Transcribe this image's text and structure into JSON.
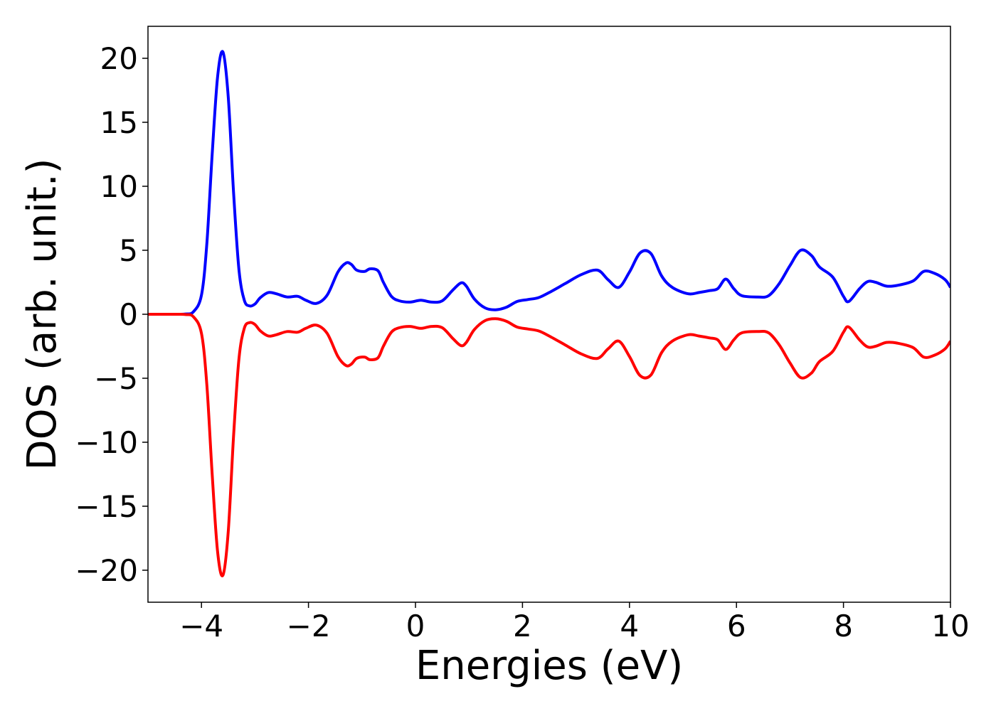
{
  "chart_data": {
    "type": "line",
    "title": "",
    "xlabel": "Energies (eV)",
    "ylabel": "DOS (arb. unit.)",
    "xlim": [
      -5,
      10
    ],
    "ylim": [
      -22.5,
      22.5
    ],
    "xticks": [
      -4,
      -2,
      0,
      2,
      4,
      6,
      8,
      10
    ],
    "yticks": [
      -20,
      -15,
      -10,
      -5,
      0,
      5,
      10,
      15,
      20
    ],
    "xtick_labels": [
      "−4",
      "−2",
      "0",
      "2",
      "4",
      "6",
      "8",
      "10"
    ],
    "ytick_labels": [
      "−20",
      "−15",
      "−10",
      "−5",
      "0",
      "5",
      "10",
      "15",
      "20"
    ],
    "grid": false,
    "legend": "none",
    "series": [
      {
        "color": "#0000ff",
        "x": [
          -5,
          -4.6,
          -4.3,
          -4.15,
          -4.0,
          -3.9,
          -3.8,
          -3.7,
          -3.6,
          -3.5,
          -3.4,
          -3.3,
          -3.2,
          -3.1,
          -3.0,
          -2.9,
          -2.75,
          -2.6,
          -2.4,
          -2.2,
          -2.05,
          -1.85,
          -1.65,
          -1.45,
          -1.3,
          -1.2,
          -1.1,
          -0.95,
          -0.85,
          -0.7,
          -0.6,
          -0.45,
          -0.3,
          -0.1,
          0.1,
          0.3,
          0.5,
          0.7,
          0.85,
          0.95,
          1.1,
          1.3,
          1.5,
          1.7,
          1.9,
          2.1,
          2.3,
          2.5,
          2.8,
          3.1,
          3.4,
          3.6,
          3.8,
          4.0,
          4.2,
          4.4,
          4.6,
          4.8,
          5.1,
          5.3,
          5.5,
          5.65,
          5.8,
          5.95,
          6.1,
          6.4,
          6.6,
          6.8,
          7.0,
          7.2,
          7.4,
          7.55,
          7.8,
          8.0,
          8.1,
          8.3,
          8.45,
          8.6,
          8.8,
          9.0,
          9.3,
          9.5,
          9.7,
          9.9,
          10.0
        ],
        "values": [
          0,
          0,
          0.02,
          0.2,
          1.5,
          5.5,
          12.5,
          18.5,
          20.5,
          17.0,
          9.5,
          3.5,
          1.1,
          0.65,
          0.8,
          1.3,
          1.7,
          1.6,
          1.35,
          1.4,
          1.1,
          0.85,
          1.5,
          3.3,
          4.0,
          3.9,
          3.45,
          3.35,
          3.55,
          3.4,
          2.5,
          1.4,
          1.05,
          0.95,
          1.1,
          0.95,
          1.05,
          1.9,
          2.45,
          2.2,
          1.2,
          0.5,
          0.35,
          0.55,
          1.0,
          1.15,
          1.3,
          1.7,
          2.4,
          3.1,
          3.45,
          2.7,
          2.1,
          3.3,
          4.8,
          4.75,
          3.0,
          2.1,
          1.6,
          1.7,
          1.85,
          2.0,
          2.75,
          2.0,
          1.45,
          1.35,
          1.45,
          2.4,
          3.8,
          5.0,
          4.6,
          3.7,
          2.9,
          1.4,
          1.0,
          2.0,
          2.55,
          2.5,
          2.2,
          2.25,
          2.6,
          3.35,
          3.2,
          2.7,
          2.1
        ]
      },
      {
        "color": "#ff0000",
        "x": [
          -5,
          -4.6,
          -4.3,
          -4.15,
          -4.0,
          -3.9,
          -3.8,
          -3.7,
          -3.6,
          -3.5,
          -3.4,
          -3.3,
          -3.2,
          -3.1,
          -3.0,
          -2.9,
          -2.75,
          -2.6,
          -2.4,
          -2.2,
          -2.05,
          -1.85,
          -1.65,
          -1.45,
          -1.3,
          -1.2,
          -1.1,
          -0.95,
          -0.85,
          -0.7,
          -0.6,
          -0.45,
          -0.3,
          -0.1,
          0.1,
          0.3,
          0.5,
          0.7,
          0.85,
          0.95,
          1.1,
          1.3,
          1.5,
          1.7,
          1.9,
          2.1,
          2.3,
          2.5,
          2.8,
          3.1,
          3.4,
          3.6,
          3.8,
          4.0,
          4.2,
          4.4,
          4.6,
          4.8,
          5.1,
          5.3,
          5.5,
          5.65,
          5.8,
          5.95,
          6.1,
          6.4,
          6.6,
          6.8,
          7.0,
          7.2,
          7.4,
          7.55,
          7.8,
          8.0,
          8.1,
          8.3,
          8.45,
          8.6,
          8.8,
          9.0,
          9.3,
          9.5,
          9.7,
          9.9,
          10.0
        ],
        "values": [
          0,
          0,
          -0.02,
          -0.2,
          -1.5,
          -5.5,
          -12.5,
          -18.5,
          -20.4,
          -17.0,
          -9.5,
          -3.5,
          -1.1,
          -0.65,
          -0.8,
          -1.3,
          -1.7,
          -1.6,
          -1.35,
          -1.4,
          -1.1,
          -0.85,
          -1.5,
          -3.3,
          -4.0,
          -3.9,
          -3.45,
          -3.35,
          -3.55,
          -3.4,
          -2.5,
          -1.4,
          -1.05,
          -0.95,
          -1.1,
          -0.95,
          -1.05,
          -1.9,
          -2.45,
          -2.2,
          -1.2,
          -0.5,
          -0.35,
          -0.55,
          -1.0,
          -1.15,
          -1.3,
          -1.7,
          -2.4,
          -3.1,
          -3.45,
          -2.7,
          -2.1,
          -3.3,
          -4.8,
          -4.75,
          -3.0,
          -2.1,
          -1.6,
          -1.7,
          -1.85,
          -2.0,
          -2.75,
          -2.0,
          -1.45,
          -1.35,
          -1.45,
          -2.4,
          -3.8,
          -4.95,
          -4.6,
          -3.7,
          -2.9,
          -1.4,
          -1.0,
          -2.0,
          -2.55,
          -2.5,
          -2.2,
          -2.25,
          -2.6,
          -3.35,
          -3.2,
          -2.7,
          -2.1
        ]
      }
    ]
  }
}
